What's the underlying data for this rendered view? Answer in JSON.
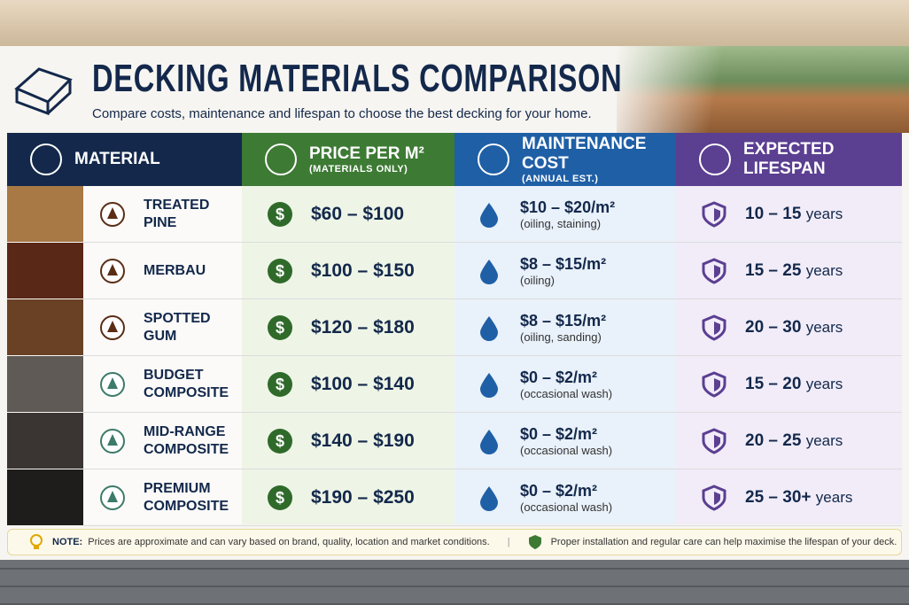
{
  "header": {
    "title": "DECKING MATERIALS COMPARISON",
    "subtitle": "Compare costs, maintenance and lifespan to choose the best decking for your home."
  },
  "table": {
    "columns": [
      {
        "title": "MATERIAL"
      },
      {
        "title": "PRICE PER M²",
        "subtitle": "(MATERIALS ONLY)"
      },
      {
        "title": "MAINTENANCE COST",
        "subtitle": "(ANNUAL EST.)"
      },
      {
        "title": "EXPECTED LIFESPAN"
      }
    ],
    "rows": [
      {
        "material": [
          "TREATED PINE"
        ],
        "price": "$60 – $100",
        "maintenance": "$10 – $20/m²",
        "maintenance_note": "(oiling, staining)",
        "lifespan": "10 – 15",
        "lifespan_unit": "years"
      },
      {
        "material": [
          "MERBAU"
        ],
        "price": "$100 – $150",
        "maintenance": "$8 – $15/m²",
        "maintenance_note": "(oiling)",
        "lifespan": "15 – 25",
        "lifespan_unit": "years"
      },
      {
        "material": [
          "SPOTTED GUM"
        ],
        "price": "$120 – $180",
        "maintenance": "$8 – $15/m²",
        "maintenance_note": "(oiling, sanding)",
        "lifespan": "20 – 30",
        "lifespan_unit": "years"
      },
      {
        "material": [
          "BUDGET",
          "COMPOSITE"
        ],
        "price": "$100 – $140",
        "maintenance": "$0 – $2/m²",
        "maintenance_note": "(occasional wash)",
        "lifespan": "15 – 20",
        "lifespan_unit": "years"
      },
      {
        "material": [
          "MID-RANGE",
          "COMPOSITE"
        ],
        "price": "$140 – $190",
        "maintenance": "$0 – $2/m²",
        "maintenance_note": "(occasional wash)",
        "lifespan": "20 – 25",
        "lifespan_unit": "years"
      },
      {
        "material": [
          "PREMIUM",
          "COMPOSITE"
        ],
        "price": "$190 – $250",
        "maintenance": "$0 – $2/m²",
        "maintenance_note": "(occasional wash)",
        "lifespan": "25 – 30+",
        "lifespan_unit": "years"
      }
    ]
  },
  "footer": {
    "note_label": "NOTE:",
    "note": "Prices are approximate and can vary based on brand, quality, location and market conditions.",
    "tip": "Proper installation and regular care can help maximise the lifespan of your deck."
  }
}
